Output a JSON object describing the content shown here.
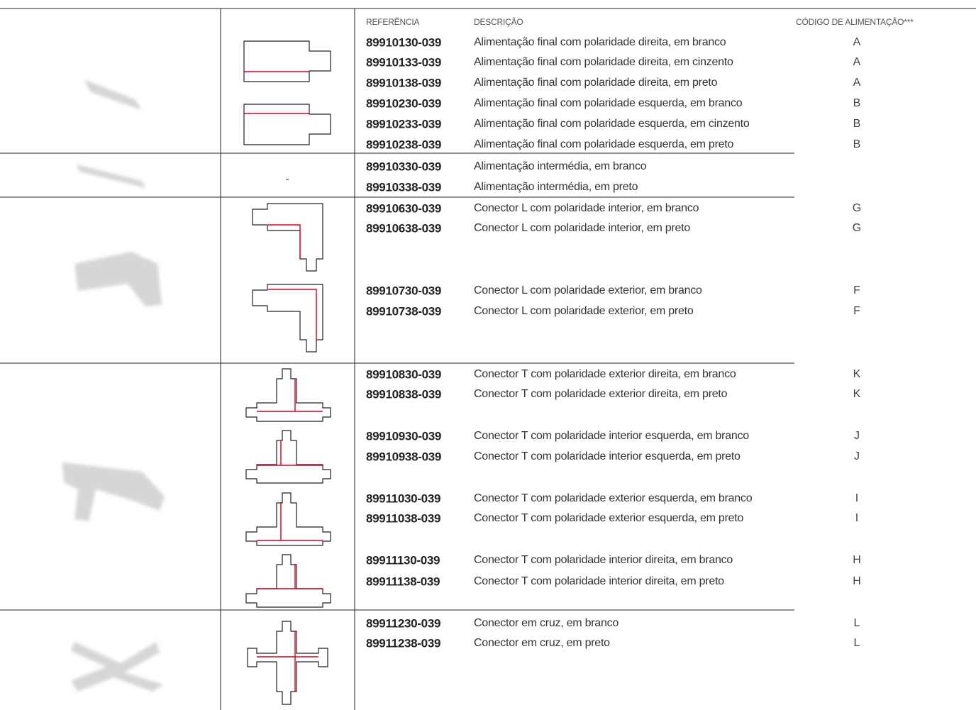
{
  "header": {
    "reference": "REFERÊNCIA",
    "description": "DESCRIÇÃO",
    "code": "CÓDIGO DE ALIMENTAÇÃO***"
  },
  "groups": [
    {
      "rows": [
        {
          "reference": "89910130-039",
          "description": "Alimentação final com polaridade direita, em branco",
          "code": "A"
        },
        {
          "reference": "89910133-039",
          "description": "Alimentação final com polaridade direita, em cinzento",
          "code": "A"
        },
        {
          "reference": "89910138-039",
          "description": "Alimentação final com polaridade direita, em preto",
          "code": "A"
        },
        {
          "reference": "89910230-039",
          "description": "Alimentação final com polaridade esquerda, em branco",
          "code": "B"
        },
        {
          "reference": "89910233-039",
          "description": "Alimentação final com polaridade esquerda, em cinzento",
          "code": "B"
        },
        {
          "reference": "89910238-039",
          "description": "Alimentação final com polaridade esquerda, em preto",
          "code": "B"
        }
      ]
    },
    {
      "diagram": "-",
      "rows": [
        {
          "reference": "89910330-039",
          "description": "Alimentação intermédia, em branco"
        },
        {
          "reference": "89910338-039",
          "description": "Alimentação intermédia, em preto"
        }
      ]
    },
    {
      "rows": [
        {
          "reference": "89910630-039",
          "description": "Conector L com polaridade interior, em branco",
          "code": "G"
        },
        {
          "reference": "89910638-039",
          "description": "Conector L com polaridade interior, em preto",
          "code": "G"
        },
        {
          "reference": "89910730-039",
          "description": "Conector L com polaridade exterior, em branco",
          "code": "F"
        },
        {
          "reference": "89910738-039",
          "description": "Conector L com polaridade exterior, em preto",
          "code": "F"
        }
      ]
    },
    {
      "rows": [
        {
          "reference": "89910830-039",
          "description": "Conector T com polaridade exterior direita, em branco",
          "code": "K"
        },
        {
          "reference": "89910838-039",
          "description": "Conector T com polaridade exterior direita, em preto",
          "code": "K"
        },
        {
          "reference": "89910930-039",
          "description": "Conector T com polaridade interior esquerda, em branco",
          "code": "J"
        },
        {
          "reference": "89910938-039",
          "description": "Conector T com polaridade interior esquerda, em preto",
          "code": "J"
        },
        {
          "reference": "89911030-039",
          "description": "Conector T com polaridade exterior esquerda, em branco",
          "code": "I"
        },
        {
          "reference": "89911038-039",
          "description": "Conector T com polaridade exterior esquerda, em preto",
          "code": "I"
        },
        {
          "reference": "89911130-039",
          "description": "Conector T com polaridade interior direita, em branco",
          "code": "H"
        },
        {
          "reference": "89911138-039",
          "description": "Conector T com polaridade interior direita, em preto",
          "code": "H"
        }
      ]
    },
    {
      "rows": [
        {
          "reference": "89911230-039",
          "description": "Conector em cruz, em branco",
          "code": "L"
        },
        {
          "reference": "89911238-039",
          "description": "Conector em cruz, em preto",
          "code": "L"
        }
      ]
    }
  ]
}
